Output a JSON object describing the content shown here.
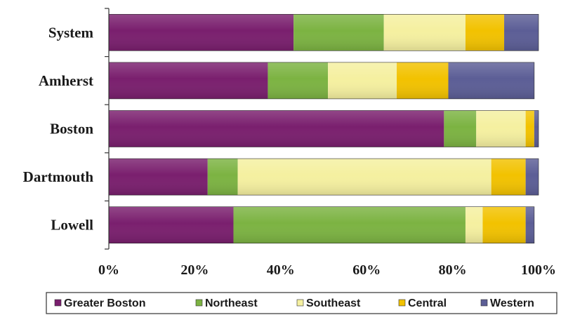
{
  "chart_data": {
    "type": "bar",
    "orientation": "horizontal",
    "stacked": true,
    "title": "",
    "xlabel": "",
    "ylabel": "",
    "categories": [
      "System",
      "Amherst",
      "Boston",
      "Dartmouth",
      "Lowell"
    ],
    "xlim": [
      0,
      100
    ],
    "xticks": [
      "0%",
      "20%",
      "40%",
      "60%",
      "80%",
      "100%"
    ],
    "grid": false,
    "legend_position": "bottom",
    "series": [
      {
        "name": "Greater Boston",
        "color": "#7a1f6e",
        "values": [
          43,
          37,
          78,
          23,
          29
        ]
      },
      {
        "name": "Northeast",
        "color": "#7cb342",
        "values": [
          21,
          14,
          7.5,
          7,
          54
        ]
      },
      {
        "name": "Southeast",
        "color": "#f5f0a0",
        "values": [
          19,
          16,
          11.5,
          59,
          4
        ]
      },
      {
        "name": "Central",
        "color": "#f2c200",
        "values": [
          9,
          12,
          2,
          8,
          10
        ]
      },
      {
        "name": "Western",
        "color": "#5c5e96",
        "values": [
          8,
          20,
          1,
          3,
          2
        ]
      }
    ]
  }
}
